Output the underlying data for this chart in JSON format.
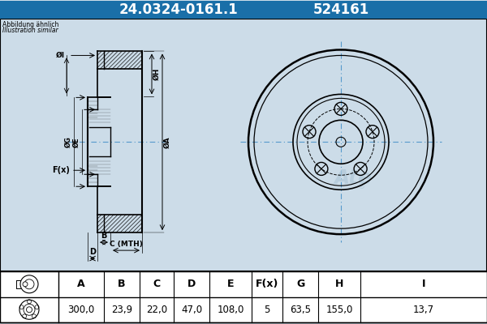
{
  "title_part": "24.0324-0161.1",
  "title_code": "524161",
  "title_bg": "#1a6fa8",
  "subtitle1": "Abbildung ähnlich",
  "subtitle2": "Illustration similar",
  "header_labels": [
    "A",
    "B",
    "C",
    "D",
    "E",
    "F(x)",
    "G",
    "H",
    "I"
  ],
  "values": [
    "300,0",
    "23,9",
    "22,0",
    "47,0",
    "108,0",
    "5",
    "63,5",
    "155,0",
    "13,7"
  ],
  "bg_color": "#ccdce8",
  "table_bg": "#ffffff",
  "line_color": "#000000",
  "centerline_color": "#5599cc",
  "watermark_color": "#b0c8d8"
}
